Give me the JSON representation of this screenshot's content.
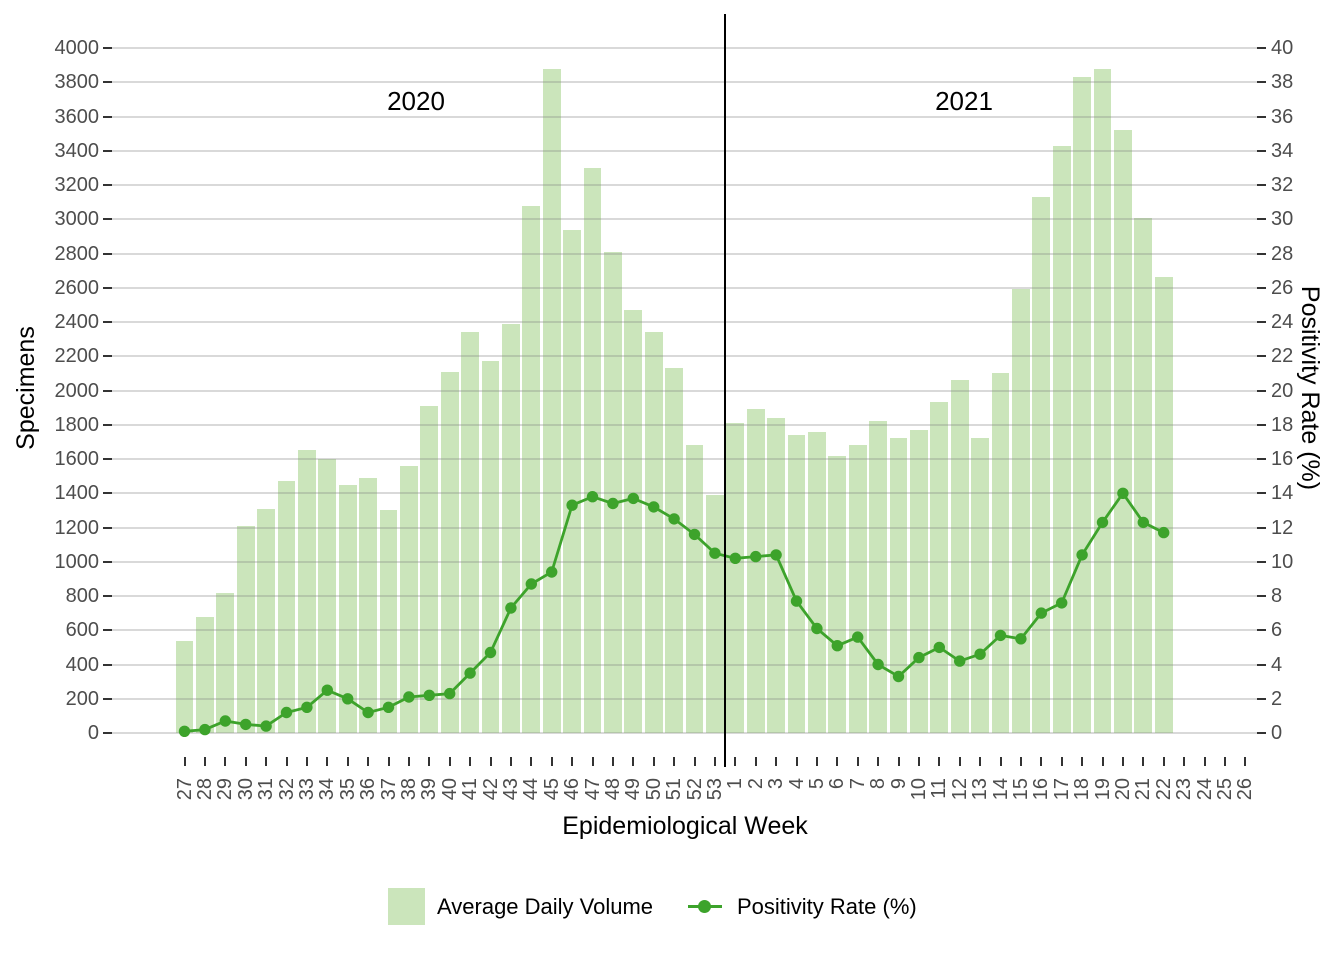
{
  "chart_data": {
    "type": "combo_bar_line",
    "x_axis": {
      "label": "Epidemiological Week",
      "tick_labels": [
        "27",
        "28",
        "29",
        "30",
        "31",
        "32",
        "33",
        "34",
        "35",
        "36",
        "37",
        "38",
        "39",
        "40",
        "41",
        "42",
        "43",
        "44",
        "45",
        "46",
        "47",
        "48",
        "49",
        "50",
        "51",
        "52",
        "53",
        "1",
        "2",
        "3",
        "4",
        "5",
        "6",
        "7",
        "8",
        "9",
        "10",
        "11",
        "12",
        "13",
        "14",
        "15",
        "16",
        "17",
        "18",
        "19",
        "20",
        "21",
        "22",
        "23",
        "24",
        "25",
        "26"
      ]
    },
    "y_left_axis": {
      "label": "Specimens",
      "min": 0,
      "max": 4000,
      "step": 200,
      "tick_labels": [
        "0",
        "200",
        "400",
        "600",
        "800",
        "1000",
        "1200",
        "1400",
        "1600",
        "1800",
        "2000",
        "2200",
        "2400",
        "2600",
        "2800",
        "3000",
        "3200",
        "3400",
        "3600",
        "3800",
        "4000"
      ]
    },
    "y_right_axis": {
      "label": "Positivity Rate (%)",
      "min": 0,
      "max": 40,
      "step": 2,
      "tick_labels": [
        "0",
        "2",
        "4",
        "6",
        "8",
        "10",
        "12",
        "14",
        "16",
        "18",
        "20",
        "22",
        "24",
        "26",
        "28",
        "30",
        "32",
        "34",
        "36",
        "38",
        "40"
      ]
    },
    "annotations": {
      "left_year": "2020",
      "right_year": "2021",
      "divider_between": "week 53 (2020) and week 1 (2021)"
    },
    "series": [
      {
        "name": "Average Daily Volume",
        "type": "bar",
        "axis": "left",
        "color": "#cbe5bb",
        "values": [
          540,
          680,
          820,
          1210,
          1310,
          1470,
          1650,
          1600,
          1450,
          1490,
          1300,
          1560,
          1910,
          2110,
          2340,
          2170,
          2390,
          3080,
          3880,
          2940,
          3300,
          2810,
          2470,
          2340,
          2130,
          1680,
          1390,
          1810,
          1890,
          1840,
          1740,
          1760,
          1620,
          1680,
          1820,
          1720,
          1770,
          1930,
          2060,
          1720,
          2100,
          2590,
          3130,
          3430,
          3830,
          3880,
          3520,
          3010,
          2660,
          null,
          null,
          null,
          null
        ]
      },
      {
        "name": "Positivity Rate (%)",
        "type": "line",
        "axis": "right",
        "color": "#3da32b",
        "values": [
          0.1,
          0.2,
          0.7,
          0.5,
          0.4,
          1.2,
          1.5,
          2.5,
          2.0,
          1.2,
          1.5,
          2.1,
          2.2,
          2.3,
          3.5,
          4.7,
          7.3,
          8.7,
          9.4,
          13.3,
          13.8,
          13.4,
          13.7,
          13.2,
          12.5,
          11.6,
          10.5,
          10.2,
          10.3,
          10.4,
          7.7,
          6.1,
          5.1,
          5.6,
          4.0,
          3.3,
          4.4,
          5.0,
          4.2,
          4.6,
          5.7,
          5.5,
          7.0,
          7.6,
          10.4,
          12.3,
          14.0,
          12.3,
          11.7,
          null,
          null,
          null,
          null
        ]
      }
    ],
    "colors": {
      "gridline": "rgba(128,128,128,0.30)",
      "tick_mark": "#333333",
      "tick_text": "#4d4d4d",
      "axis_text": "#000000",
      "divider": "#000000",
      "background": "#ffffff"
    },
    "grid": true,
    "legend_position": "bottom"
  },
  "legend": {
    "items": [
      {
        "label": "Average Daily Volume",
        "swatch": "bar-square"
      },
      {
        "label": "Positivity Rate (%)",
        "swatch": "line-dot"
      }
    ]
  }
}
